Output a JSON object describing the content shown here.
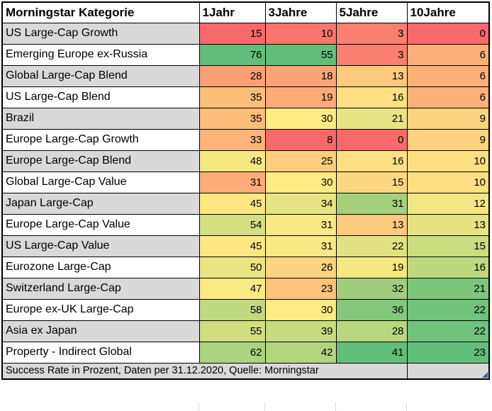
{
  "table": {
    "header": {
      "category": "Morningstar Kategorie",
      "columns": [
        "1Jahr",
        "3Jahre",
        "5Jahre",
        "10Jahre"
      ]
    },
    "rows": [
      {
        "label": "US Large-Cap Growth",
        "label_bg": "#d9d9d9",
        "values": [
          "15",
          "10",
          "3",
          "0"
        ],
        "colors": [
          "#F8696B",
          "#F9756D",
          "#F97F6F",
          "#F8696B"
        ]
      },
      {
        "label": "Emerging Europe ex-Russia",
        "label_bg": "#ffffff",
        "values": [
          "76",
          "55",
          "3",
          "6"
        ],
        "colors": [
          "#63BE7B",
          "#63BE7B",
          "#F97F6F",
          "#FCB079"
        ]
      },
      {
        "label": "Global Large-Cap Blend",
        "label_bg": "#d9d9d9",
        "values": [
          "28",
          "18",
          "13",
          "6"
        ],
        "colors": [
          "#FBA075",
          "#FBA476",
          "#FDCA7E",
          "#FCB079"
        ]
      },
      {
        "label": "US Large-Cap Blend",
        "label_bg": "#ffffff",
        "values": [
          "35",
          "19",
          "16",
          "6"
        ],
        "colors": [
          "#FDBD7B",
          "#FCAA78",
          "#FEE082",
          "#FCB079"
        ]
      },
      {
        "label": "Brazil",
        "label_bg": "#d9d9d9",
        "values": [
          "35",
          "30",
          "21",
          "9"
        ],
        "colors": [
          "#FDBD7B",
          "#FFEB84",
          "#E8E483",
          "#FED37F"
        ]
      },
      {
        "label": "Europe Large-Cap Growth",
        "label_bg": "#ffffff",
        "values": [
          "33",
          "8",
          "0",
          "9"
        ],
        "colors": [
          "#FCB47A",
          "#F8696B",
          "#F8696B",
          "#FED37F"
        ]
      },
      {
        "label": "Europe Large-Cap Blend",
        "label_bg": "#d9d9d9",
        "values": [
          "48",
          "25",
          "16",
          "10"
        ],
        "colors": [
          "#F5E883",
          "#FDCD7E",
          "#FEE082",
          "#FEDF81"
        ]
      },
      {
        "label": "Global Large-Cap Value",
        "label_bg": "#ffffff",
        "values": [
          "31",
          "30",
          "15",
          "10"
        ],
        "colors": [
          "#FCAC78",
          "#FFEB84",
          "#FED880",
          "#FEDF81"
        ]
      },
      {
        "label": "Japan Large-Cap",
        "label_bg": "#d9d9d9",
        "values": [
          "45",
          "34",
          "31",
          "12"
        ],
        "colors": [
          "#FEE783",
          "#E6E483",
          "#A5D17F",
          "#F2E783"
        ]
      },
      {
        "label": "Europe Large-Cap Value",
        "label_bg": "#ffffff",
        "values": [
          "54",
          "31",
          "13",
          "13"
        ],
        "colors": [
          "#D5DF82",
          "#F9E984",
          "#FDCA7E",
          "#E5E482"
        ]
      },
      {
        "label": "US Large-Cap Value",
        "label_bg": "#d9d9d9",
        "values": [
          "45",
          "31",
          "22",
          "15"
        ],
        "colors": [
          "#FEE783",
          "#F9E984",
          "#E1E282",
          "#CBDC81"
        ]
      },
      {
        "label": "Eurozone Large-Cap",
        "label_bg": "#ffffff",
        "values": [
          "50",
          "26",
          "19",
          "16"
        ],
        "colors": [
          "#EAE583",
          "#FED37F",
          "#F5E883",
          "#BED880"
        ]
      },
      {
        "label": "Switzerland Large-Cap",
        "label_bg": "#d9d9d9",
        "values": [
          "47",
          "23",
          "32",
          "21"
        ],
        "colors": [
          "#FAEA84",
          "#FDC27C",
          "#9FCF7E",
          "#7DC67C"
        ]
      },
      {
        "label": "Europe ex-UK Large-Cap",
        "label_bg": "#ffffff",
        "values": [
          "58",
          "30",
          "36",
          "22"
        ],
        "colors": [
          "#C1D980",
          "#FFEB84",
          "#84C87D",
          "#70C27C"
        ]
      },
      {
        "label": "Asia ex Japan",
        "label_bg": "#d9d9d9",
        "values": [
          "55",
          "39",
          "28",
          "22"
        ],
        "colors": [
          "#D0DE81",
          "#C7DB81",
          "#B9D780",
          "#70C27C"
        ]
      },
      {
        "label": "Property - Indirect Global",
        "label_bg": "#ffffff",
        "values": [
          "62",
          "42",
          "41",
          "23"
        ],
        "colors": [
          "#ACD37F",
          "#B4D580",
          "#63BE7B",
          "#63BE7B"
        ]
      }
    ],
    "footer": {
      "text": "Success Rate in Prozent, Daten per 31.12.2020, Quelle: Morningstar"
    }
  },
  "colors": {
    "grid_border": "#000000",
    "label_alt_bg": "#d9d9d9",
    "label_default_bg": "#ffffff",
    "footer_bg": "#d9d9d9",
    "corner_marker": "#3b5ea9",
    "scale_min": "#F8696B",
    "scale_mid": "#FFEB84",
    "scale_max": "#63BE7B"
  },
  "chart_data": {
    "type": "heatmap",
    "title": "Success Rate in Prozent",
    "note": "Daten per 31.12.2020, Quelle: Morningstar",
    "row_label_header": "Morningstar Kategorie",
    "columns": [
      "1Jahr",
      "3Jahre",
      "5Jahre",
      "10Jahre"
    ],
    "rows": [
      "US Large-Cap Growth",
      "Emerging Europe ex-Russia",
      "Global Large-Cap Blend",
      "US Large-Cap Blend",
      "Brazil",
      "Europe Large-Cap Growth",
      "Europe Large-Cap Blend",
      "Global Large-Cap Value",
      "Japan Large-Cap",
      "Europe Large-Cap Value",
      "US Large-Cap Value",
      "Eurozone Large-Cap",
      "Switzerland Large-Cap",
      "Europe ex-UK Large-Cap",
      "Asia ex Japan",
      "Property - Indirect Global"
    ],
    "values": [
      [
        15,
        10,
        3,
        0
      ],
      [
        76,
        55,
        3,
        6
      ],
      [
        28,
        18,
        13,
        6
      ],
      [
        35,
        19,
        16,
        6
      ],
      [
        35,
        30,
        21,
        9
      ],
      [
        33,
        8,
        0,
        9
      ],
      [
        48,
        25,
        16,
        10
      ],
      [
        31,
        30,
        15,
        10
      ],
      [
        45,
        34,
        31,
        12
      ],
      [
        54,
        31,
        13,
        13
      ],
      [
        45,
        31,
        22,
        15
      ],
      [
        50,
        26,
        19,
        16
      ],
      [
        47,
        23,
        32,
        21
      ],
      [
        58,
        30,
        36,
        22
      ],
      [
        55,
        39,
        28,
        22
      ],
      [
        62,
        42,
        41,
        23
      ]
    ],
    "unit": "percent",
    "color_scale": {
      "type": "3-color",
      "min_color": "#F8696B",
      "mid_color": "#FFEB84",
      "max_color": "#63BE7B",
      "scope": "per-column"
    }
  }
}
